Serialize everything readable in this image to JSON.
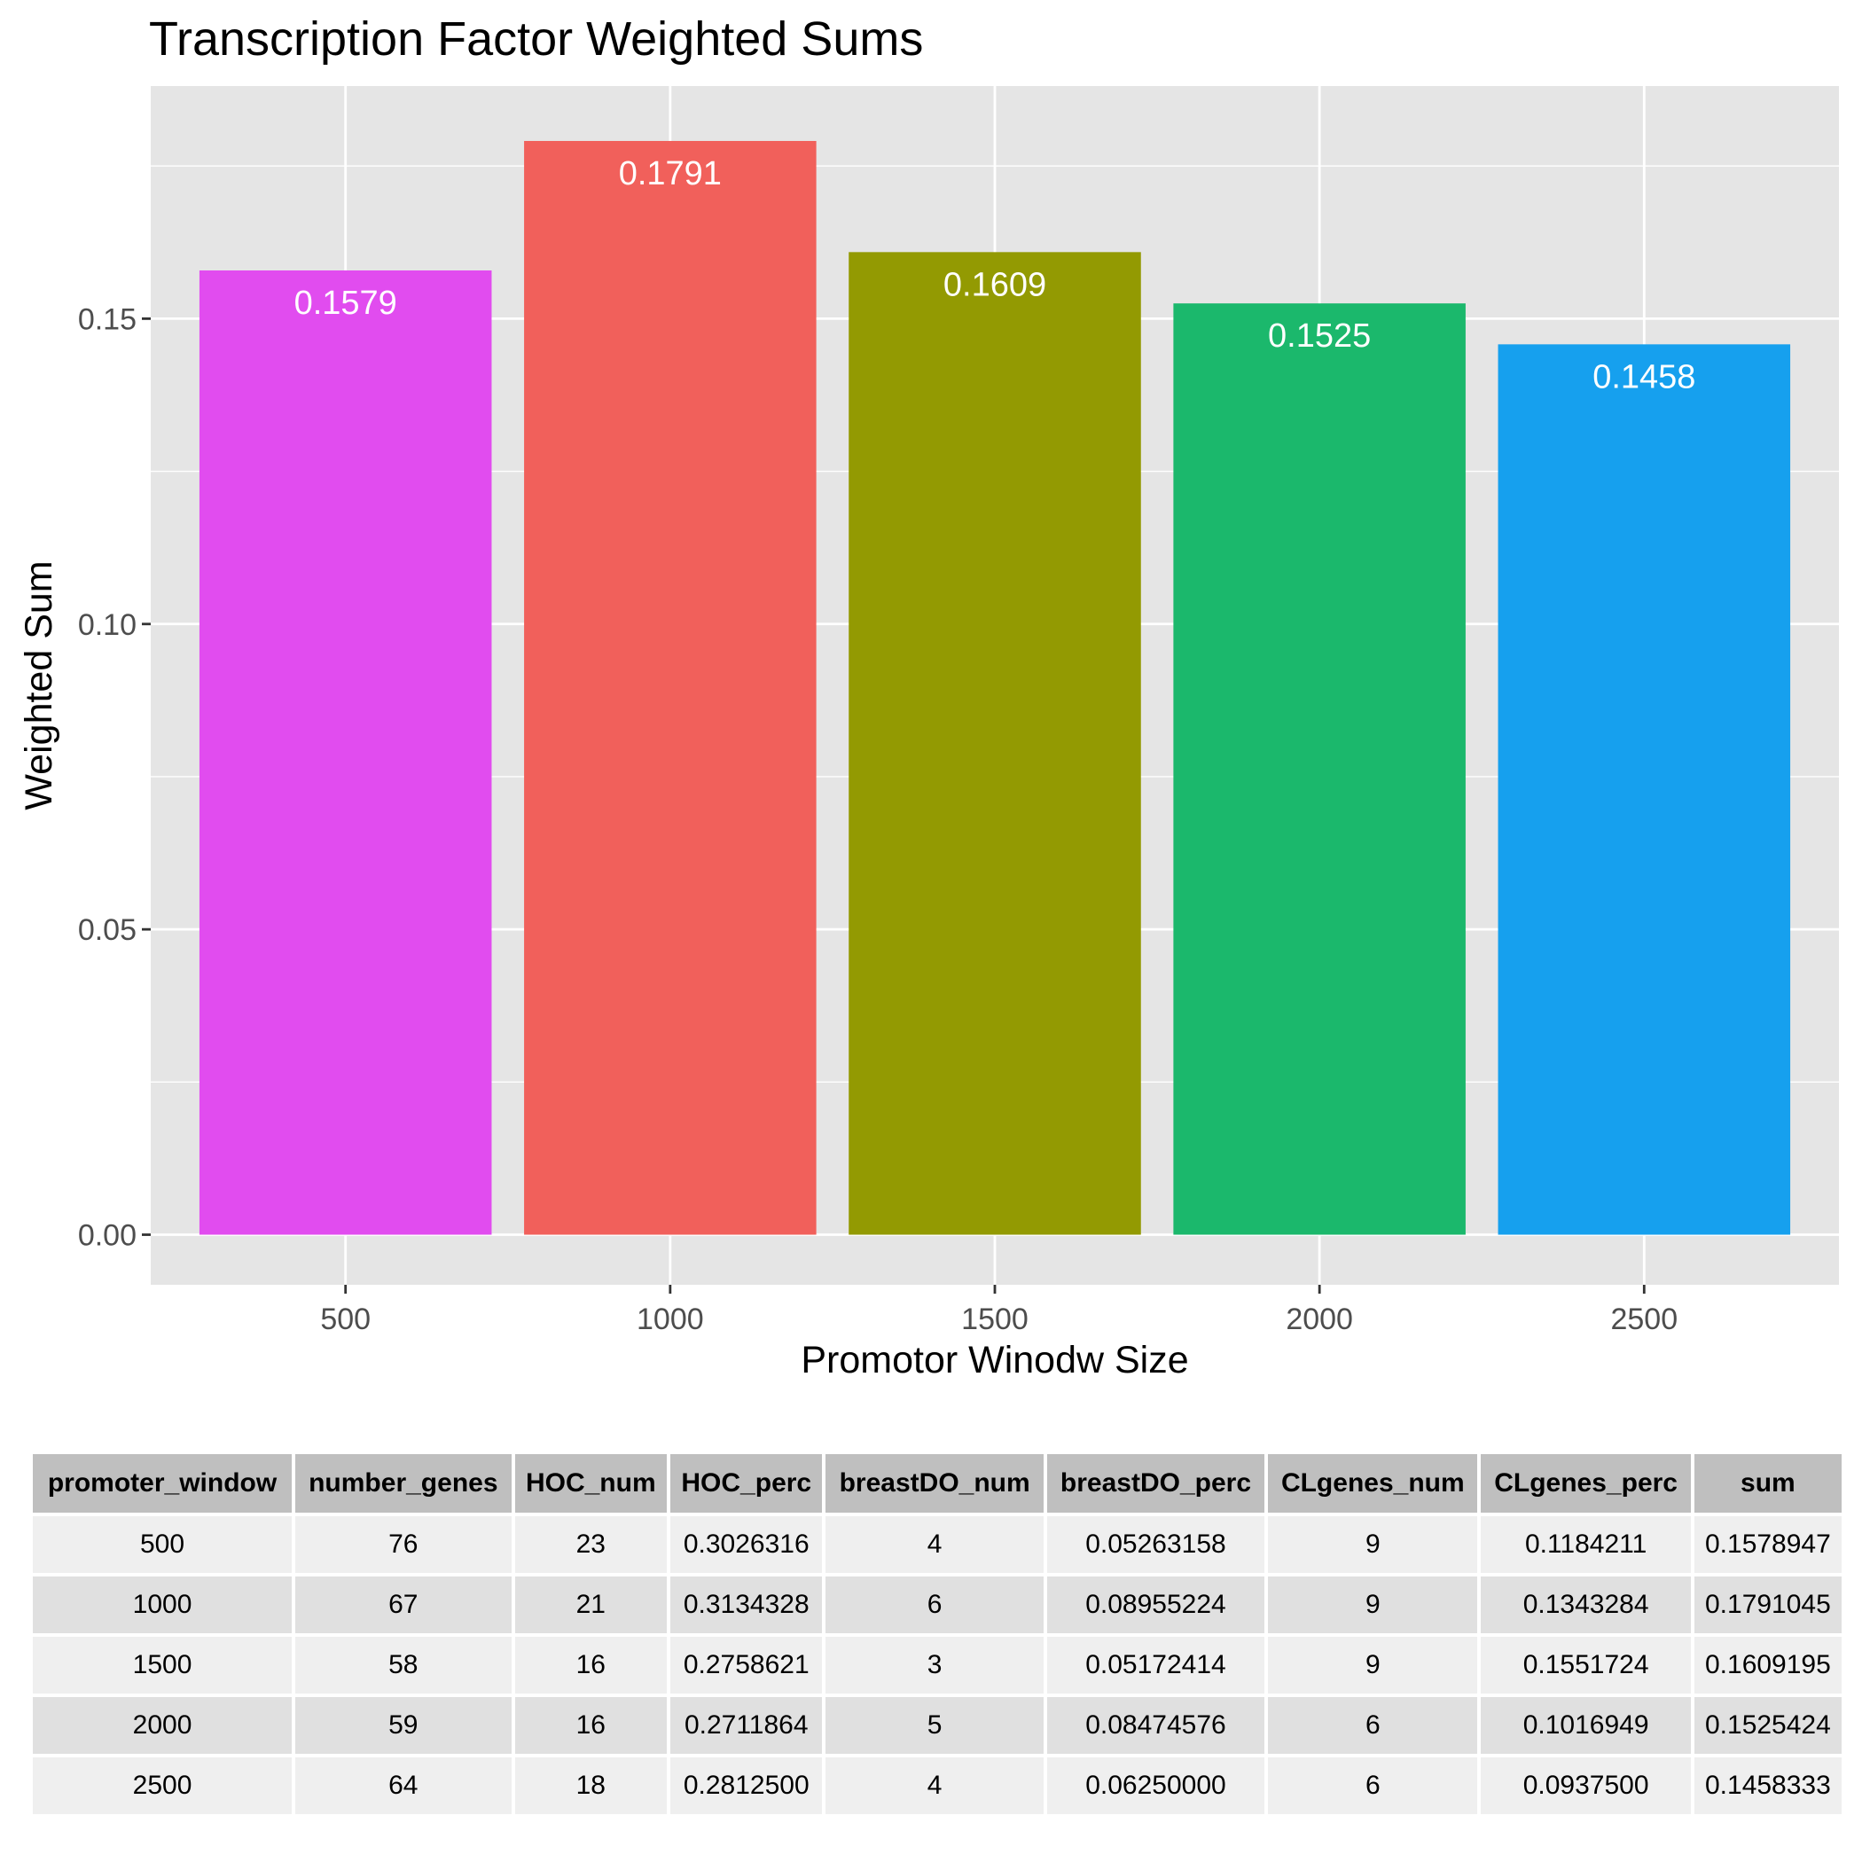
{
  "chart_data": {
    "type": "bar",
    "title": "Transcription Factor Weighted Sums",
    "xlabel": "Promotor Winodw Size",
    "ylabel": "Weighted Sum",
    "categories": [
      "500",
      "1000",
      "1500",
      "2000",
      "2500"
    ],
    "values": [
      0.1579,
      0.1791,
      0.1609,
      0.1525,
      0.1458
    ],
    "data_labels": [
      "0.1579",
      "0.1791",
      "0.1609",
      "0.1525",
      "0.1458"
    ],
    "colors": [
      "#E14CEF",
      "#F1605B",
      "#939A02",
      "#1BB86C",
      "#16A0EE"
    ],
    "x_ticks": [
      "500",
      "1000",
      "1500",
      "2000",
      "2500"
    ],
    "y_ticks": [
      0.0,
      0.05,
      0.1,
      0.15
    ],
    "y_tick_labels": [
      "0.00",
      "0.05",
      "0.10",
      "0.15"
    ],
    "ylim": [
      -0.0082,
      0.1881
    ],
    "grid": true,
    "legend": "none",
    "panel_background": "#E5E5E5"
  },
  "table": {
    "headers": [
      "promoter_window",
      "number_genes",
      "HOC_num",
      "HOC_perc",
      "breastDO_num",
      "breastDO_perc",
      "CLgenes_num",
      "CLgenes_perc",
      "sum"
    ],
    "rows": [
      [
        "500",
        "76",
        "23",
        "0.3026316",
        "4",
        "0.05263158",
        "9",
        "0.1184211",
        "0.1578947"
      ],
      [
        "1000",
        "67",
        "21",
        "0.3134328",
        "6",
        "0.08955224",
        "9",
        "0.1343284",
        "0.1791045"
      ],
      [
        "1500",
        "58",
        "16",
        "0.2758621",
        "3",
        "0.05172414",
        "9",
        "0.1551724",
        "0.1609195"
      ],
      [
        "2000",
        "59",
        "16",
        "0.2711864",
        "5",
        "0.08474576",
        "6",
        "0.1016949",
        "0.1525424"
      ],
      [
        "2500",
        "64",
        "18",
        "0.2812500",
        "4",
        "0.06250000",
        "6",
        "0.0937500",
        "0.1458333"
      ]
    ]
  }
}
